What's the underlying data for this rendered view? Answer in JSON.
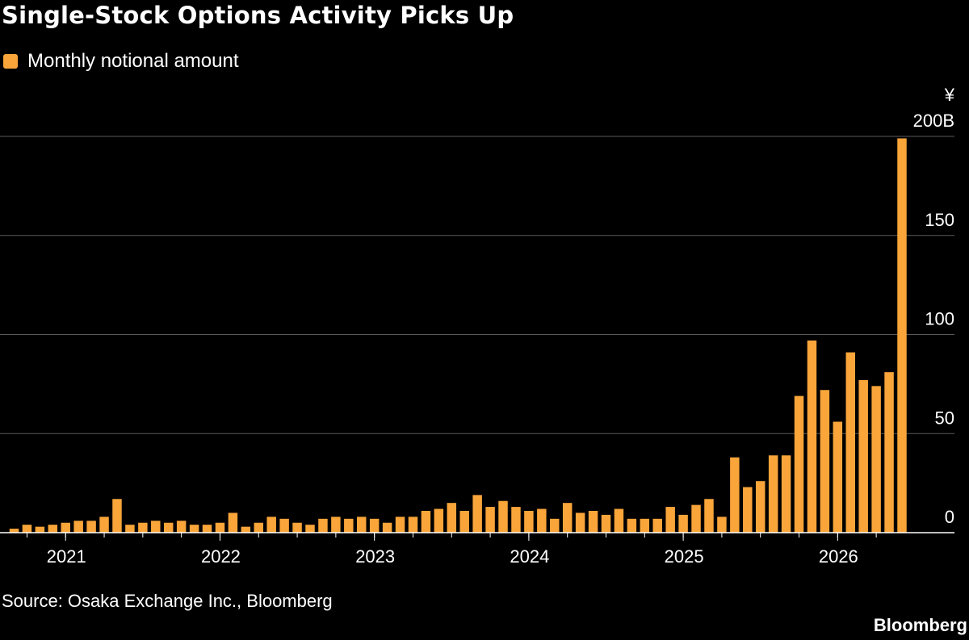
{
  "title": "Single-Stock Options Activity Picks Up",
  "legend": {
    "label": "Monthly notional amount"
  },
  "source": "Source: Osaka Exchange Inc., Bloomberg",
  "brand": "Bloomberg",
  "colors": {
    "background": "#000000",
    "bar": "#f9a53a",
    "grid": "#5a5a5a",
    "axis": "#ffffff",
    "text": "#ffffff"
  },
  "chart_data": {
    "type": "bar",
    "title": "Single-Stock Options Activity Picks Up",
    "series": [
      {
        "name": "Monthly notional amount",
        "values": [
          2,
          4,
          3,
          4,
          5,
          6,
          6,
          8,
          17,
          4,
          5,
          6,
          5,
          6,
          4,
          4,
          5,
          10,
          3,
          5,
          8,
          7,
          5,
          4,
          7,
          8,
          7,
          8,
          7,
          5,
          8,
          8,
          11,
          12,
          15,
          11,
          19,
          13,
          16,
          13,
          11,
          12,
          7,
          15,
          10,
          11,
          9,
          12,
          7,
          7,
          7,
          13,
          9,
          14,
          17,
          8,
          38,
          23,
          26,
          39,
          39,
          69,
          97,
          72,
          56,
          91,
          77,
          74,
          81,
          199
        ]
      }
    ],
    "x_start": "2020-09",
    "x_end": "2026-06",
    "x_ticks": [
      "2021",
      "2022",
      "2023",
      "2024",
      "2025",
      "2026"
    ],
    "y_ticks": [
      "0",
      "50",
      "100",
      "150",
      "200B"
    ],
    "y_unit": "¥",
    "ylim": [
      0,
      200
    ],
    "grid": true,
    "legend_position": "top-left"
  }
}
